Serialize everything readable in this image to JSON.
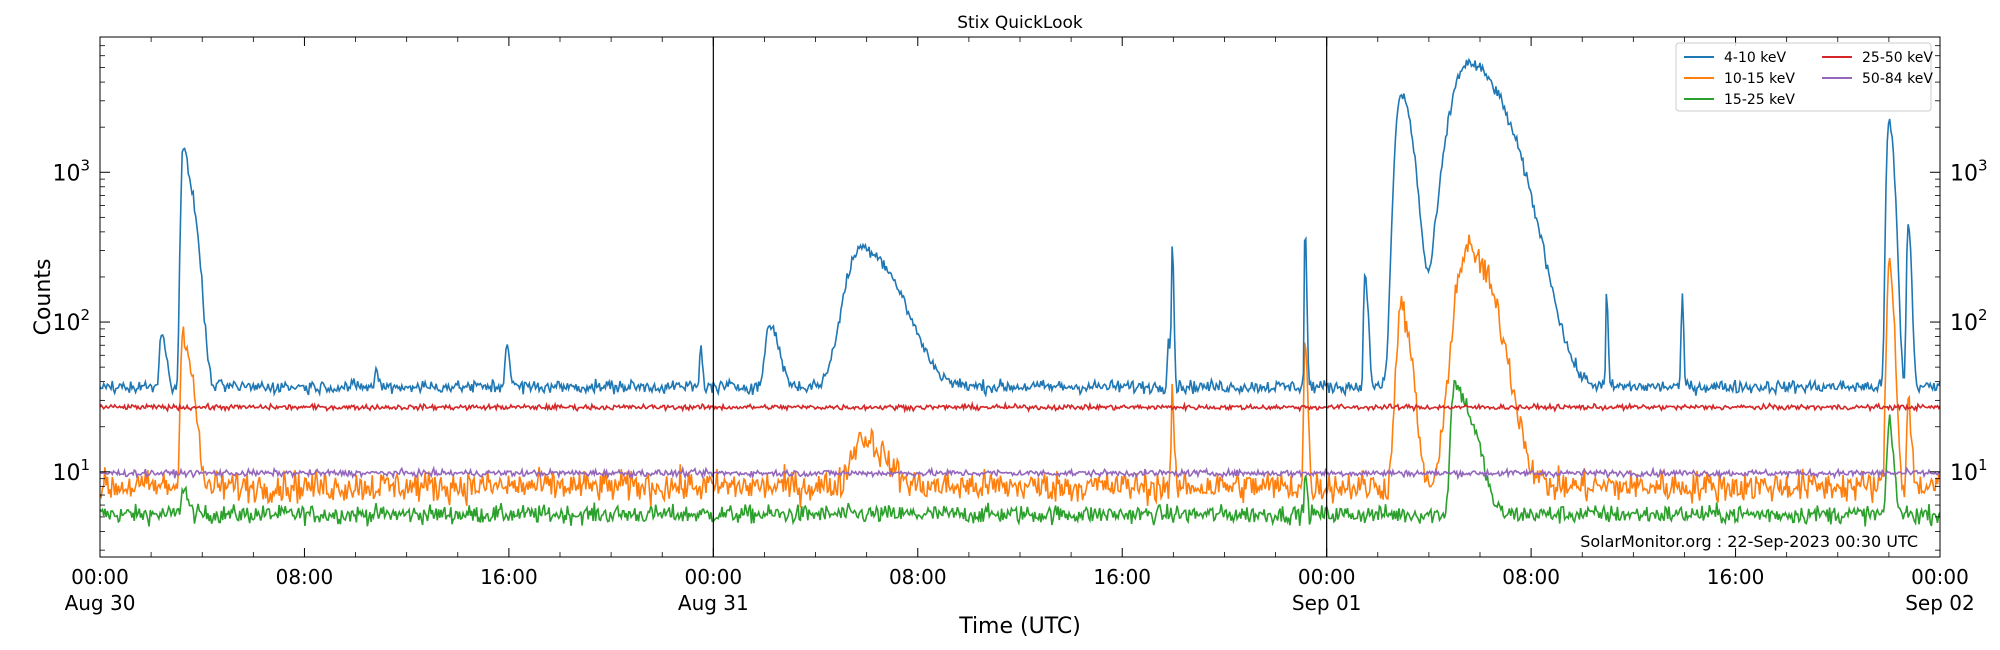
{
  "chart_data": {
    "type": "line",
    "title": "Stix QuickLook",
    "xlabel": "Time (UTC)",
    "ylabel": "Counts",
    "y_scale": "log",
    "ylim": [
      2.7,
      8000
    ],
    "xlim_hours": [
      0,
      72
    ],
    "x_ticks": [
      {
        "hour": 0,
        "label": "00:00",
        "date": "Aug 30"
      },
      {
        "hour": 8,
        "label": "08:00",
        "date": ""
      },
      {
        "hour": 16,
        "label": "16:00",
        "date": ""
      },
      {
        "hour": 24,
        "label": "00:00",
        "date": "Aug 31"
      },
      {
        "hour": 32,
        "label": "08:00",
        "date": ""
      },
      {
        "hour": 40,
        "label": "16:00",
        "date": ""
      },
      {
        "hour": 48,
        "label": "00:00",
        "date": "Sep 01"
      },
      {
        "hour": 56,
        "label": "08:00",
        "date": ""
      },
      {
        "hour": 64,
        "label": "16:00",
        "date": ""
      },
      {
        "hour": 72,
        "label": "00:00",
        "date": "Sep 02"
      }
    ],
    "y_ticks": [
      {
        "value": 10,
        "base": "10",
        "exp": "1"
      },
      {
        "value": 100,
        "base": "10",
        "exp": "2"
      },
      {
        "value": 1000,
        "base": "10",
        "exp": "3"
      }
    ],
    "day_boundaries_hours": [
      24,
      48
    ],
    "legend_position": "top-right",
    "grid": false,
    "credit": "SolarMonitor.org : 22-Sep-2023 00:30 UTC",
    "series": [
      {
        "name": "4-10 keV",
        "color": "#1f77b4",
        "baseline": 37,
        "noise": 0.05,
        "peaks": [
          {
            "t": 2.4,
            "v": 85,
            "w": 0.12
          },
          {
            "t": 3.25,
            "v": 1400,
            "w": 0.12
          },
          {
            "t": 3.55,
            "v": 650,
            "w": 0.2
          },
          {
            "t": 10.8,
            "v": 52,
            "w": 0.05
          },
          {
            "t": 15.9,
            "v": 75,
            "w": 0.08
          },
          {
            "t": 23.5,
            "v": 70,
            "w": 0.05
          },
          {
            "t": 26.2,
            "v": 95,
            "w": 0.25
          },
          {
            "t": 29.8,
            "v": 315,
            "w": 0.9
          },
          {
            "t": 41.8,
            "v": 80,
            "w": 0.06
          },
          {
            "t": 41.95,
            "v": 330,
            "w": 0.04
          },
          {
            "t": 47.15,
            "v": 420,
            "w": 0.04
          },
          {
            "t": 49.5,
            "v": 200,
            "w": 0.08
          },
          {
            "t": 50.9,
            "v": 3300,
            "w": 0.3
          },
          {
            "t": 53.5,
            "v": 5300,
            "w": 0.95
          },
          {
            "t": 58.95,
            "v": 150,
            "w": 0.04
          },
          {
            "t": 61.9,
            "v": 160,
            "w": 0.04
          },
          {
            "t": 70.0,
            "v": 2200,
            "w": 0.13
          },
          {
            "t": 70.75,
            "v": 450,
            "w": 0.08
          }
        ]
      },
      {
        "name": "10-15 keV",
        "color": "#ff7f0e",
        "baseline": 8,
        "noise": 0.12,
        "peaks": [
          {
            "t": 3.25,
            "v": 95,
            "w": 0.12
          },
          {
            "t": 3.55,
            "v": 40,
            "w": 0.15
          },
          {
            "t": 29.8,
            "v": 17,
            "w": 0.6
          },
          {
            "t": 41.95,
            "v": 38,
            "w": 0.04
          },
          {
            "t": 47.15,
            "v": 80,
            "w": 0.06
          },
          {
            "t": 50.9,
            "v": 120,
            "w": 0.25
          },
          {
            "t": 53.5,
            "v": 300,
            "w": 0.65
          },
          {
            "t": 70.0,
            "v": 240,
            "w": 0.12
          },
          {
            "t": 70.75,
            "v": 30,
            "w": 0.08
          }
        ]
      },
      {
        "name": "15-25 keV",
        "color": "#2ca02c",
        "baseline": 5.2,
        "noise": 0.07,
        "peaks": [
          {
            "t": 3.25,
            "v": 8,
            "w": 0.12
          },
          {
            "t": 47.15,
            "v": 10,
            "w": 0.05
          },
          {
            "t": 53.0,
            "v": 38,
            "w": 0.2
          },
          {
            "t": 53.5,
            "v": 22,
            "w": 0.35
          },
          {
            "t": 70.0,
            "v": 20,
            "w": 0.12
          }
        ]
      },
      {
        "name": "25-50 keV",
        "color": "#d62728",
        "baseline": 27,
        "noise": 0.02,
        "peaks": []
      },
      {
        "name": "50-84 keV",
        "color": "#9467bd",
        "baseline": 9.8,
        "noise": 0.025,
        "peaks": []
      }
    ]
  }
}
